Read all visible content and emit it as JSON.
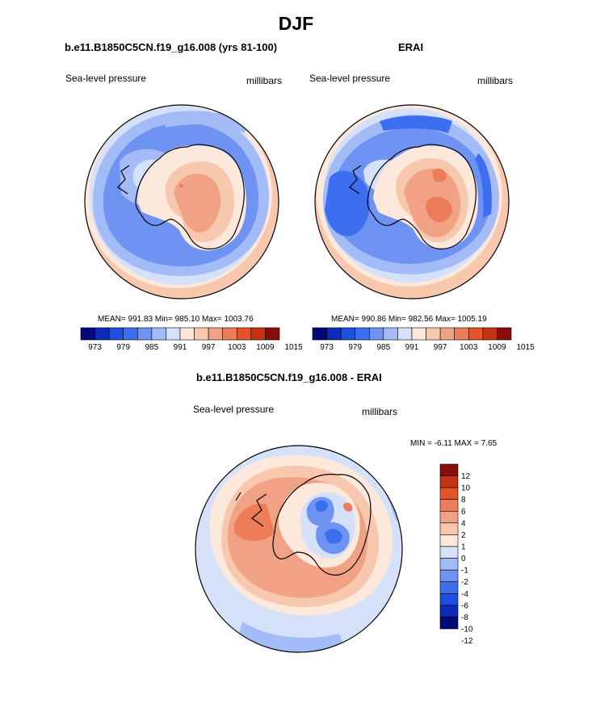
{
  "figure": {
    "title": "DJF"
  },
  "palette": {
    "abs": [
      "#020a78",
      "#0a2bb8",
      "#1d50df",
      "#3e6ef0",
      "#6e93f2",
      "#a3bbf6",
      "#d4e1f8",
      "#fde8dc",
      "#f7c7ae",
      "#f2a284",
      "#ed7c58",
      "#e45428",
      "#c43215",
      "#8a0d0b"
    ],
    "diff": [
      "#020a78",
      "#0a2bb8",
      "#1d50df",
      "#3e6ef0",
      "#6e93f2",
      "#a3bbf6",
      "#d4e1f8",
      "#fde8dc",
      "#f7c7ae",
      "#f2a284",
      "#ed7c58",
      "#e45428",
      "#c43215",
      "#8a0d0b"
    ]
  },
  "chart_data": [
    {
      "type": "heatmap",
      "title": "b.e11.B1850C5CN.f19_g16.008 (yrs 81-100)",
      "left_label": "Sea-level pressure",
      "right_label": "millibars",
      "stats_text": "MEAN= 991.83  Min= 985.10  Max= 1003.76",
      "mean": 991.83,
      "min": 985.1,
      "max": 1003.76,
      "colorbar_ticks": [
        "973",
        "979",
        "985",
        "991",
        "997",
        "1003",
        "1009",
        "1015"
      ],
      "levels": [
        973,
        976,
        979,
        982,
        985,
        988,
        991,
        994,
        997,
        1000,
        1003,
        1006,
        1009,
        1012,
        1015
      ]
    },
    {
      "type": "heatmap",
      "title": "ERAI",
      "left_label": "Sea-level pressure",
      "right_label": "millibars",
      "stats_text": "MEAN= 990.86  Min= 982.56  Max= 1005.19",
      "mean": 990.86,
      "min": 982.56,
      "max": 1005.19,
      "colorbar_ticks": [
        "973",
        "979",
        "985",
        "991",
        "997",
        "1003",
        "1009",
        "1015"
      ],
      "levels": [
        973,
        976,
        979,
        982,
        985,
        988,
        991,
        994,
        997,
        1000,
        1003,
        1006,
        1009,
        1012,
        1015
      ]
    },
    {
      "type": "heatmap",
      "title": "b.e11.B1850C5CN.f19_g16.008 - ERAI",
      "left_label": "Sea-level pressure",
      "right_label": "millibars",
      "stats_text": "MIN =  -6.11 MAX =   7.65",
      "min": -6.11,
      "max": 7.65,
      "colorbar_labels": [
        "12",
        "10",
        "8",
        "6",
        "4",
        "2",
        "1",
        "0",
        "-1",
        "-2",
        "-4",
        "-6",
        "-8",
        "-10",
        "-12"
      ],
      "levels": [
        -12,
        -10,
        -8,
        -6,
        -4,
        -2,
        -1,
        0,
        1,
        2,
        4,
        6,
        8,
        10,
        12
      ]
    }
  ]
}
